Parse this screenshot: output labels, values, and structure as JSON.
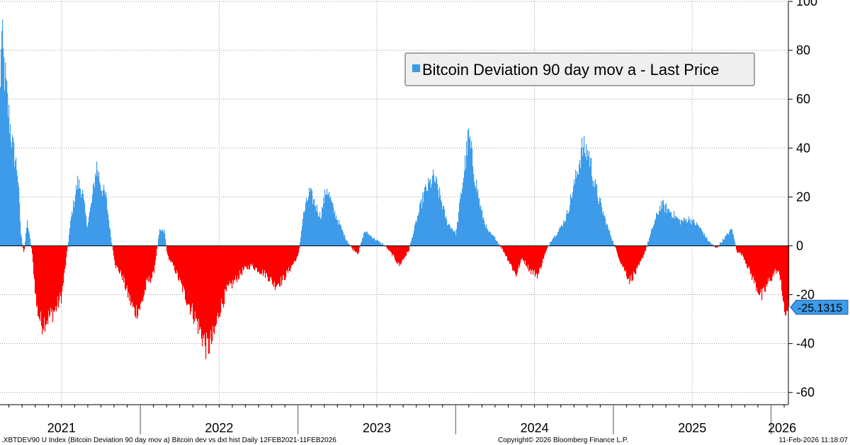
{
  "chart_data": {
    "type": "bar",
    "title": "",
    "xlabel": "",
    "ylabel": "",
    "ylim": [
      -65,
      100
    ],
    "yticks": [
      100,
      80,
      60,
      40,
      20,
      0,
      -20,
      -40,
      -60
    ],
    "grid": true,
    "legend_position": "top-right",
    "series": [
      {
        "name": "Bitcoin Deviation 90 day mov a - Last Price",
        "positive_color": "#3d9be9",
        "negative_color": "#ff0000",
        "x_range": [
          "12FEB2021",
          "11FEB2026"
        ],
        "keypoints": [
          [
            2021.11,
            62
          ],
          [
            2021.115,
            88
          ],
          [
            2021.13,
            75
          ],
          [
            2021.16,
            55
          ],
          [
            2021.19,
            40
          ],
          [
            2021.22,
            30
          ],
          [
            2021.24,
            5
          ],
          [
            2021.26,
            -3
          ],
          [
            2021.28,
            10
          ],
          [
            2021.31,
            -2
          ],
          [
            2021.34,
            -25
          ],
          [
            2021.37,
            -32
          ],
          [
            2021.42,
            -29
          ],
          [
            2021.46,
            -26
          ],
          [
            2021.5,
            -20
          ],
          [
            2021.53,
            -4
          ],
          [
            2021.56,
            12
          ],
          [
            2021.6,
            26
          ],
          [
            2021.63,
            22
          ],
          [
            2021.66,
            8
          ],
          [
            2021.69,
            18
          ],
          [
            2021.72,
            33
          ],
          [
            2021.75,
            24
          ],
          [
            2021.78,
            20
          ],
          [
            2021.81,
            4
          ],
          [
            2021.84,
            -8
          ],
          [
            2021.88,
            -12
          ],
          [
            2021.92,
            -20
          ],
          [
            2021.96,
            -27
          ],
          [
            2022.0,
            -25
          ],
          [
            2022.04,
            -15
          ],
          [
            2022.08,
            -12
          ],
          [
            2022.1,
            -3
          ],
          [
            2022.12,
            6
          ],
          [
            2022.15,
            6
          ],
          [
            2022.17,
            -4
          ],
          [
            2022.22,
            -10
          ],
          [
            2022.28,
            -20
          ],
          [
            2022.35,
            -30
          ],
          [
            2022.42,
            -42
          ],
          [
            2022.46,
            -38
          ],
          [
            2022.5,
            -26
          ],
          [
            2022.55,
            -18
          ],
          [
            2022.6,
            -14
          ],
          [
            2022.65,
            -10
          ],
          [
            2022.7,
            -8
          ],
          [
            2022.75,
            -10
          ],
          [
            2022.8,
            -12
          ],
          [
            2022.85,
            -16
          ],
          [
            2022.9,
            -14
          ],
          [
            2022.95,
            -9
          ],
          [
            2023.0,
            -4
          ],
          [
            2023.03,
            12
          ],
          [
            2023.07,
            22
          ],
          [
            2023.1,
            18
          ],
          [
            2023.14,
            12
          ],
          [
            2023.18,
            24
          ],
          [
            2023.22,
            15
          ],
          [
            2023.26,
            9
          ],
          [
            2023.3,
            3
          ],
          [
            2023.34,
            -1
          ],
          [
            2023.38,
            -3
          ],
          [
            2023.42,
            6
          ],
          [
            2023.46,
            4
          ],
          [
            2023.5,
            2
          ],
          [
            2023.55,
            0
          ],
          [
            2023.6,
            -4
          ],
          [
            2023.64,
            -8
          ],
          [
            2023.7,
            -2
          ],
          [
            2023.74,
            8
          ],
          [
            2023.8,
            22
          ],
          [
            2023.86,
            28
          ],
          [
            2023.9,
            20
          ],
          [
            2023.94,
            10
          ],
          [
            2024.0,
            5
          ],
          [
            2024.05,
            30
          ],
          [
            2024.08,
            45
          ],
          [
            2024.12,
            28
          ],
          [
            2024.16,
            14
          ],
          [
            2024.2,
            6
          ],
          [
            2024.25,
            3
          ],
          [
            2024.3,
            -2
          ],
          [
            2024.35,
            -8
          ],
          [
            2024.38,
            -12
          ],
          [
            2024.42,
            -5
          ],
          [
            2024.47,
            -10
          ],
          [
            2024.52,
            -12
          ],
          [
            2024.56,
            -4
          ],
          [
            2024.6,
            2
          ],
          [
            2024.65,
            6
          ],
          [
            2024.7,
            12
          ],
          [
            2024.75,
            25
          ],
          [
            2024.8,
            40
          ],
          [
            2024.84,
            38
          ],
          [
            2024.88,
            25
          ],
          [
            2024.92,
            16
          ],
          [
            2024.96,
            8
          ],
          [
            2025.0,
            1
          ],
          [
            2025.04,
            -6
          ],
          [
            2025.1,
            -14
          ],
          [
            2025.15,
            -10
          ],
          [
            2025.2,
            -2
          ],
          [
            2025.25,
            8
          ],
          [
            2025.3,
            17
          ],
          [
            2025.36,
            14
          ],
          [
            2025.42,
            10
          ],
          [
            2025.48,
            11
          ],
          [
            2025.54,
            8
          ],
          [
            2025.6,
            2
          ],
          [
            2025.65,
            -1
          ],
          [
            2025.7,
            3
          ],
          [
            2025.75,
            7
          ],
          [
            2025.78,
            -2
          ],
          [
            2025.82,
            -4
          ],
          [
            2025.86,
            -10
          ],
          [
            2025.9,
            -16
          ],
          [
            2025.94,
            -21
          ],
          [
            2025.98,
            -15
          ],
          [
            2026.03,
            -10
          ],
          [
            2026.06,
            -13
          ],
          [
            2026.08,
            -28
          ],
          [
            2026.11,
            -25.13
          ]
        ]
      }
    ],
    "x_axis": {
      "year_labels": [
        "2021",
        "2022",
        "2023",
        "2024",
        "2025",
        "2026"
      ],
      "year_label_centers": [
        2021.5,
        2022.5,
        2023.5,
        2024.5,
        2025.5,
        2026.07
      ],
      "year_boundaries": [
        2022,
        2023,
        2024,
        2025,
        2026
      ],
      "range": [
        2021.11,
        2026.11
      ]
    },
    "last_value": {
      "label": "-25.1315",
      "value": -25.1315,
      "color": "#3d9be9"
    }
  },
  "legend": {
    "label": "Bitcoin Deviation 90 day mov a - Last Price",
    "marker_color": "#3d9be9"
  },
  "footer": {
    "left": ".XBTDEV90 U Index (Bitcoin Deviation 90 day mov a) Bitcoin dev vs dxt hist Daily 12FEB2021-11FEB2026",
    "center": "Copyright© 2026 Bloomberg Finance L.P.",
    "right": "11-Feb-2026 11:18:07"
  }
}
